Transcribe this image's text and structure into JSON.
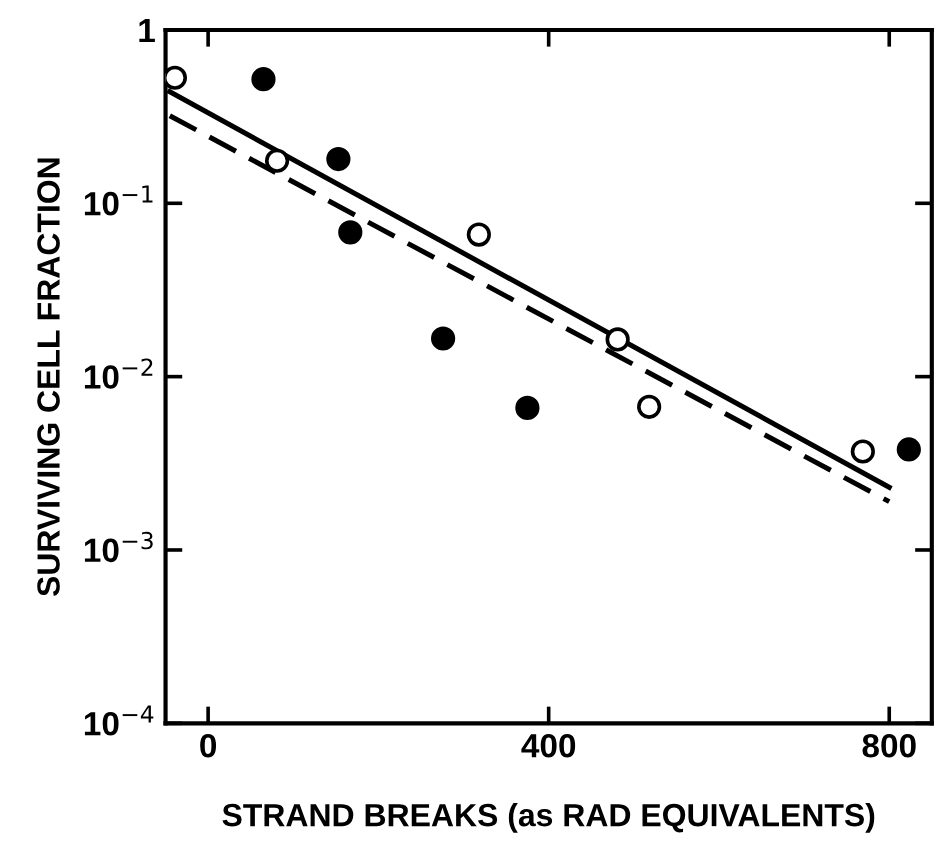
{
  "chart_data": {
    "type": "scatter",
    "xlabel": "STRAND BREAKS (as RAD EQUIVALENTS)",
    "ylabel": "SURVIVING CELL FRACTION",
    "log": "y",
    "grid": false,
    "xlim": [
      -50,
      850
    ],
    "ylim": [
      0.0001,
      1
    ],
    "xticks": [
      0,
      400,
      800
    ],
    "yticks": [
      {
        "value": 0.0001,
        "label": "10$^{−4}$"
      },
      {
        "value": 0.001,
        "label": "10$^{−3}$"
      },
      {
        "value": 0.01,
        "label": "10$^{−2}$"
      },
      {
        "value": 0.1,
        "label": "10$^{−1}$"
      },
      1
    ],
    "series": [
      {
        "marker": "circle",
        "color": "#000000",
        "x": [
          65,
          153,
          167,
          276,
          375,
          823
        ],
        "values": [
          0.52,
          0.18,
          0.068,
          0.0166,
          0.0066,
          0.0038
        ]
      },
      {
        "marker": "circle",
        "color": "#ffffff",
        "x": [
          -39,
          81,
          318,
          481,
          518,
          769
        ],
        "values": [
          0.53,
          0.176,
          0.066,
          0.0164,
          0.0067,
          0.0037
        ]
      },
      {
        "type": "line",
        "line_style": "solid",
        "color": "#000000",
        "x": [
          -45,
          800
        ],
        "values": [
          0.44,
          0.0023
        ]
      },
      {
        "type": "line",
        "line_style": "dashed",
        "color": "#000000",
        "x": [
          -45,
          800
        ],
        "values": [
          0.32,
          0.0019
        ]
      }
    ]
  }
}
